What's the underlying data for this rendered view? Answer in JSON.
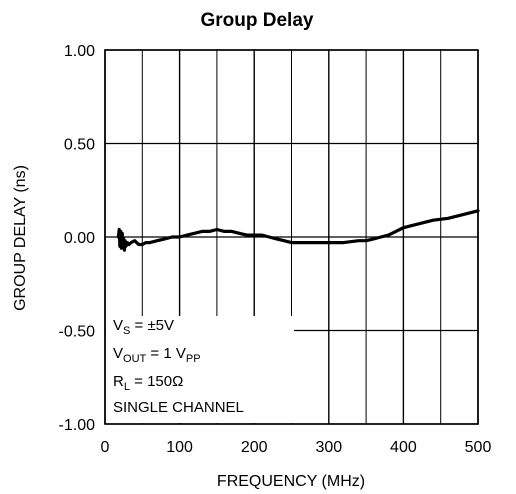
{
  "chart_data": {
    "type": "line",
    "title": "Group Delay",
    "xlabel": "FREQUENCY (MHz)",
    "ylabel": "GROUP DELAY (ns)",
    "xlim": [
      0,
      500
    ],
    "ylim": [
      -1.0,
      1.0
    ],
    "x_ticks": [
      0,
      100,
      200,
      300,
      400,
      500
    ],
    "x_tick_labels": [
      "0",
      "100",
      "200",
      "300",
      "400",
      "500"
    ],
    "y_ticks": [
      1.0,
      0.5,
      0.0,
      -0.5,
      -1.0
    ],
    "y_tick_labels": [
      "1.00",
      "0.50",
      "0.00",
      "-0.50",
      "-1.00"
    ],
    "grid": true,
    "series": [
      {
        "color": "#000000",
        "x": [
          18,
          19,
          20,
          21,
          22,
          23,
          24,
          25,
          26,
          27,
          28,
          30,
          32,
          35,
          40,
          45,
          50,
          55,
          60,
          70,
          80,
          90,
          100,
          110,
          120,
          130,
          140,
          150,
          160,
          170,
          180,
          190,
          200,
          210,
          220,
          230,
          240,
          250,
          260,
          280,
          300,
          320,
          340,
          350,
          360,
          370,
          380,
          390,
          400,
          420,
          440,
          460,
          480,
          500
        ],
        "y": [
          0.0,
          0.04,
          -0.05,
          0.03,
          -0.06,
          0.02,
          -0.03,
          -0.01,
          -0.07,
          -0.02,
          -0.05,
          -0.03,
          -0.04,
          -0.03,
          -0.02,
          -0.04,
          -0.04,
          -0.03,
          -0.03,
          -0.02,
          -0.01,
          0.0,
          0.0,
          0.01,
          0.02,
          0.03,
          0.03,
          0.04,
          0.03,
          0.03,
          0.02,
          0.01,
          0.01,
          0.01,
          0.0,
          -0.01,
          -0.02,
          -0.03,
          -0.03,
          -0.03,
          -0.03,
          -0.03,
          -0.02,
          -0.02,
          -0.01,
          0.0,
          0.01,
          0.03,
          0.05,
          0.07,
          0.09,
          0.1,
          0.12,
          0.14
        ]
      }
    ],
    "annotations": [
      {
        "main": "V",
        "sub": "S",
        "rest": " = ±5V"
      },
      {
        "main": "V",
        "sub": "OUT",
        "rest": " = 1 V",
        "sub2": "PP"
      },
      {
        "main": "R",
        "sub": "L",
        "rest": " = 150Ω"
      },
      {
        "main": "SINGLE CHANNEL"
      }
    ]
  }
}
